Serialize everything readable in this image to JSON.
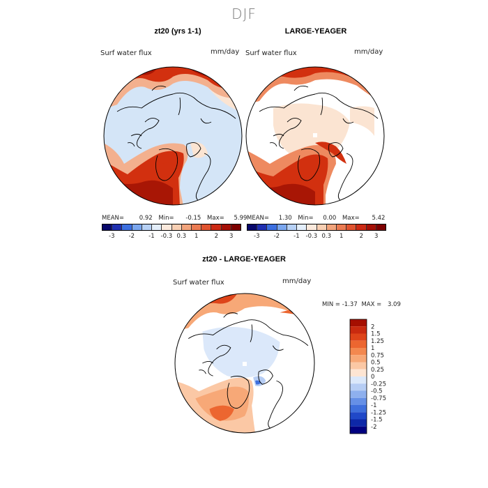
{
  "season": "DJF",
  "panels": [
    {
      "title": "zt20 (yrs 1-1)",
      "variable": "Surf water flux",
      "units": "mm/day",
      "stats": {
        "mean_label": "MEAN=",
        "mean": "0.92",
        "min_label": "Min=",
        "min": "-0.15",
        "max_label": "Max=",
        "max": "5.99"
      }
    },
    {
      "title": "LARGE-YEAGER",
      "variable": "Surf water flux",
      "units": "mm/day",
      "stats": {
        "mean_label": "MEAN=",
        "mean": "1.30",
        "min_label": "Min=",
        "min": "0.00",
        "max_label": "Max=",
        "max": "5.42"
      }
    }
  ],
  "top_colorbar": {
    "labels": [
      "-3",
      "-2",
      "-1",
      "-0.3",
      "0.3",
      "1",
      "2",
      "3"
    ],
    "colors": [
      "#08086b",
      "#1f2fb0",
      "#3c6fe0",
      "#7aa6ee",
      "#b6d0f5",
      "#e3eefb",
      "#fbe9dc",
      "#f8cfb3",
      "#f2a47c",
      "#eb7b52",
      "#e0532f",
      "#cc2a14",
      "#a51006",
      "#7d0000"
    ]
  },
  "diff_panel": {
    "title": "zt20 - LARGE-YEAGER",
    "variable": "Surf water flux",
    "units": "mm/day",
    "min_label": "MIN =",
    "min": "-1.37",
    "max_label": "MAX =",
    "max": "3.09"
  },
  "diff_colorbar": {
    "labels": [
      "2",
      "1.5",
      "1.25",
      "1",
      "0.75",
      "0.5",
      "0.25",
      "0",
      "-0.25",
      "-0.5",
      "-0.75",
      "-1",
      "-1.25",
      "-1.5",
      "-2"
    ],
    "colors": [
      "#a50f00",
      "#c92a0f",
      "#de4419",
      "#ec6630",
      "#f3884f",
      "#f7a877",
      "#fbc8a5",
      "#fde5d3",
      "#dbe8fa",
      "#b6cdf4",
      "#8eb0ee",
      "#6690e6",
      "#3f6fdc",
      "#2048c8",
      "#0d28a8",
      "#000080"
    ]
  },
  "colors": {
    "dry_blue": "#d4e5f7",
    "light_peach": "#fbe4d2",
    "mid_orange": "#ee8a60",
    "wet_red": "#d2300f",
    "very_wet": "#a81605",
    "coast": "#000000"
  }
}
